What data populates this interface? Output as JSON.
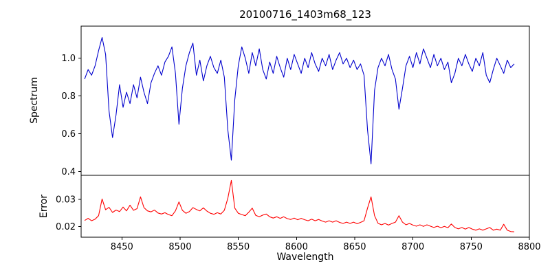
{
  "figure": {
    "title": "20100716_1403m68_123",
    "xlabel": "Wavelength",
    "background": "#ffffff"
  },
  "chart_data": [
    {
      "type": "line",
      "name": "spectrum",
      "ylabel": "Spectrum",
      "color": "#0000cd",
      "xlim": [
        8415,
        8800
      ],
      "ylim": [
        0.38,
        1.17
      ],
      "yticks": [
        0.4,
        0.6,
        0.8,
        1.0
      ],
      "ytick_labels": [
        "0.4",
        "0.6",
        "0.8",
        "1.0"
      ],
      "x_start": 8418,
      "x_step": 3,
      "y": [
        0.89,
        0.94,
        0.91,
        0.96,
        1.04,
        1.11,
        1.02,
        0.72,
        0.58,
        0.7,
        0.86,
        0.74,
        0.82,
        0.76,
        0.86,
        0.79,
        0.9,
        0.82,
        0.76,
        0.87,
        0.92,
        0.96,
        0.91,
        0.98,
        1.01,
        1.06,
        0.92,
        0.65,
        0.84,
        0.96,
        1.03,
        1.08,
        0.91,
        0.99,
        0.88,
        0.96,
        1.01,
        0.95,
        0.92,
        0.99,
        0.9,
        0.62,
        0.46,
        0.78,
        0.96,
        1.06,
        1.0,
        0.92,
        1.03,
        0.96,
        1.05,
        0.94,
        0.89,
        0.98,
        0.92,
        1.01,
        0.95,
        0.9,
        1.0,
        0.94,
        1.02,
        0.97,
        0.92,
        1.0,
        0.95,
        1.03,
        0.97,
        0.93,
        1.0,
        0.96,
        1.02,
        0.94,
        0.99,
        1.03,
        0.97,
        1.0,
        0.95,
        0.99,
        0.94,
        0.97,
        0.91,
        0.62,
        0.44,
        0.83,
        0.95,
        1.0,
        0.96,
        1.02,
        0.94,
        0.89,
        0.73,
        0.84,
        0.96,
        1.01,
        0.95,
        1.03,
        0.97,
        1.05,
        1.0,
        0.95,
        1.02,
        0.96,
        1.0,
        0.94,
        0.98,
        0.87,
        0.92,
        1.0,
        0.96,
        1.02,
        0.97,
        0.93,
        1.0,
        0.96,
        1.03,
        0.91,
        0.87,
        0.94,
        1.0,
        0.96,
        0.92,
        0.99,
        0.95,
        0.97
      ]
    },
    {
      "type": "line",
      "name": "error",
      "ylabel": "Error",
      "color": "#ff0000",
      "xlim": [
        8415,
        8800
      ],
      "ylim": [
        0.016,
        0.039
      ],
      "yticks": [
        0.02,
        0.03
      ],
      "ytick_labels": [
        "0.02",
        "0.03"
      ],
      "xticks": [
        8450,
        8500,
        8550,
        8600,
        8650,
        8700,
        8750,
        8800
      ],
      "xtick_labels": [
        "8450",
        "8500",
        "8550",
        "8600",
        "8650",
        "8700",
        "8750",
        "8800"
      ],
      "x_start": 8418,
      "x_step": 3,
      "y": [
        0.0222,
        0.023,
        0.0221,
        0.0227,
        0.024,
        0.0302,
        0.0262,
        0.0271,
        0.0252,
        0.0261,
        0.0255,
        0.0272,
        0.0258,
        0.0279,
        0.026,
        0.0266,
        0.031,
        0.027,
        0.0258,
        0.0254,
        0.0261,
        0.025,
        0.0246,
        0.0251,
        0.0244,
        0.024,
        0.0258,
        0.0291,
        0.026,
        0.0249,
        0.0255,
        0.027,
        0.0263,
        0.0258,
        0.0269,
        0.0257,
        0.0249,
        0.0245,
        0.0251,
        0.0246,
        0.026,
        0.0305,
        0.0371,
        0.0268,
        0.0249,
        0.0244,
        0.024,
        0.0253,
        0.0268,
        0.0241,
        0.0236,
        0.0242,
        0.0246,
        0.0236,
        0.0231,
        0.0236,
        0.023,
        0.0236,
        0.0229,
        0.0226,
        0.0231,
        0.0225,
        0.023,
        0.0225,
        0.0221,
        0.0227,
        0.0221,
        0.0226,
        0.022,
        0.0216,
        0.0221,
        0.0216,
        0.0221,
        0.0215,
        0.0211,
        0.0216,
        0.0211,
        0.0216,
        0.021,
        0.0215,
        0.0221,
        0.0268,
        0.031,
        0.024,
        0.0212,
        0.0206,
        0.0211,
        0.0205,
        0.0211,
        0.0216,
        0.024,
        0.0216,
        0.0206,
        0.0211,
        0.0205,
        0.0201,
        0.0206,
        0.02,
        0.0206,
        0.0201,
        0.0196,
        0.0201,
        0.0195,
        0.02,
        0.0195,
        0.0209,
        0.0196,
        0.0191,
        0.0196,
        0.019,
        0.0196,
        0.019,
        0.0186,
        0.0191,
        0.0186,
        0.0191,
        0.0196,
        0.0186,
        0.019,
        0.0186,
        0.0208,
        0.0186,
        0.0181,
        0.018
      ]
    }
  ]
}
